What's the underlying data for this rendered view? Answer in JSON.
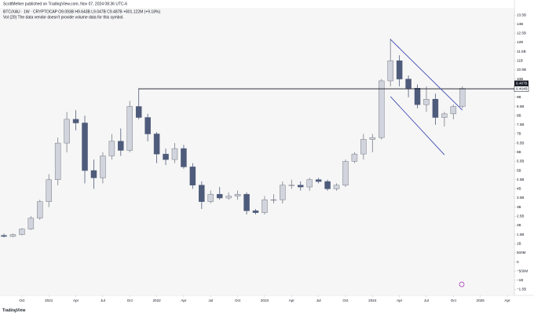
{
  "chart_data": {
    "type": "candlestick",
    "attribution": "ScottMelker published on TradingView.com, Nov 07, 2024 08:36 UTC-6",
    "title": "BTC/XAU · 1W · CRYPTOCAP  O9.093B H9.643B L9.047B C9.487B +801.122M (+9.18%)",
    "subtitle": "Vol (20)  The data vendor doesn't provide volume data for this symbol.",
    "footer_logo": "TradingView",
    "up_color": "#d1d4dc",
    "down_color": "#4e5b7a",
    "x": [
      "2020-08",
      "2020-09",
      "2020-10",
      "2020-11",
      "2020-12",
      "2021-01",
      "2021-02",
      "2021-03",
      "2021-04",
      "2021-05",
      "2021-06",
      "2021-07",
      "2021-08",
      "2021-09",
      "2021-10",
      "2021-11",
      "2021-12",
      "2022-01",
      "2022-02",
      "2022-03",
      "2022-04",
      "2022-05",
      "2022-06",
      "2022-07",
      "2022-08",
      "2022-09",
      "2022-10",
      "2022-11",
      "2022-12",
      "2023-01",
      "2023-02",
      "2023-03",
      "2023-04",
      "2023-05",
      "2023-06",
      "2023-07",
      "2023-08",
      "2023-09",
      "2023-10",
      "2023-11",
      "2023-12",
      "2024-01",
      "2024-02",
      "2024-03",
      "2024-04",
      "2024-05",
      "2024-06",
      "2024-07",
      "2024-08",
      "2024-09",
      "2024-10",
      "2024-11"
    ],
    "open": [
      1.45,
      1.4,
      1.5,
      1.8,
      2.4,
      3.3,
      4.5,
      6.5,
      7.8,
      7.6,
      5.0,
      4.6,
      5.8,
      6.6,
      6.1,
      8.5,
      7.9,
      7.0,
      5.9,
      5.6,
      6.2,
      5.2,
      4.2,
      3.3,
      3.7,
      3.5,
      3.6,
      3.7,
      2.8,
      2.7,
      3.4,
      3.4,
      4.2,
      4.2,
      4.1,
      4.5,
      4.4,
      4.0,
      4.2,
      5.5,
      5.9,
      6.7,
      6.8,
      9.9,
      11.0,
      10.0,
      9.5,
      8.6,
      8.9,
      7.9,
      8.1,
      8.5
    ],
    "high": [
      1.55,
      1.55,
      1.85,
      2.5,
      3.4,
      4.8,
      6.8,
      8.2,
      8.3,
      8.0,
      5.6,
      6.0,
      7.0,
      7.3,
      8.8,
      9.5,
      8.1,
      7.1,
      6.2,
      6.5,
      6.4,
      5.4,
      4.4,
      3.9,
      4.1,
      3.8,
      3.9,
      3.8,
      2.9,
      3.6,
      3.7,
      4.4,
      4.5,
      4.4,
      4.6,
      4.6,
      4.5,
      4.3,
      5.6,
      6.0,
      7.0,
      7.0,
      10.0,
      12.2,
      11.3,
      10.2,
      9.7,
      9.6,
      9.2,
      8.2,
      8.6,
      9.6
    ],
    "low": [
      1.35,
      1.35,
      1.45,
      1.75,
      2.3,
      3.0,
      4.2,
      6.0,
      7.2,
      4.3,
      4.0,
      4.3,
      5.6,
      5.8,
      6.0,
      7.8,
      6.6,
      5.4,
      5.3,
      5.4,
      5.1,
      4.0,
      2.9,
      3.2,
      3.4,
      3.4,
      3.4,
      2.6,
      2.6,
      2.6,
      3.2,
      3.2,
      4.0,
      3.9,
      3.9,
      4.3,
      3.9,
      3.9,
      4.1,
      5.4,
      5.6,
      6.0,
      6.7,
      9.6,
      9.6,
      9.0,
      8.4,
      8.2,
      7.5,
      7.4,
      7.8,
      8.4
    ],
    "close": [
      1.4,
      1.5,
      1.8,
      2.4,
      3.3,
      4.5,
      6.5,
      7.8,
      7.6,
      5.0,
      4.6,
      5.8,
      6.6,
      6.1,
      8.5,
      7.9,
      7.0,
      5.9,
      5.6,
      6.2,
      5.2,
      4.2,
      3.3,
      3.7,
      3.5,
      3.6,
      3.7,
      2.8,
      2.7,
      3.4,
      3.4,
      4.2,
      4.2,
      4.1,
      4.5,
      4.4,
      4.0,
      4.2,
      5.5,
      5.9,
      6.7,
      6.8,
      9.9,
      11.0,
      10.0,
      9.5,
      8.6,
      8.9,
      7.9,
      8.1,
      8.5,
      9.487
    ],
    "xlim": [
      "2020-08",
      "2025-04"
    ],
    "xticks": [
      {
        "value": "2020-10",
        "label": "Oct"
      },
      {
        "value": "2021-01",
        "label": "2021"
      },
      {
        "value": "2021-04",
        "label": "Apr"
      },
      {
        "value": "2021-07",
        "label": "Jul"
      },
      {
        "value": "2021-10",
        "label": "Oct"
      },
      {
        "value": "2022-01",
        "label": "2022"
      },
      {
        "value": "2022-04",
        "label": "Apr"
      },
      {
        "value": "2022-07",
        "label": "Jul"
      },
      {
        "value": "2022-10",
        "label": "Oct"
      },
      {
        "value": "2023-01",
        "label": "2023"
      },
      {
        "value": "2023-04",
        "label": "Apr"
      },
      {
        "value": "2023-07",
        "label": "Jul"
      },
      {
        "value": "2023-10",
        "label": "Oct"
      },
      {
        "value": "2024-01",
        "label": "2024"
      },
      {
        "value": "2024-04",
        "label": "Apr"
      },
      {
        "value": "2024-07",
        "label": "Jul"
      },
      {
        "value": "2024-10",
        "label": "Oct"
      },
      {
        "value": "2025-01",
        "label": "2025"
      },
      {
        "value": "2025-04",
        "label": "Apr"
      }
    ],
    "ylim": [
      -1.78,
      13.89
    ],
    "yticks": [
      {
        "value": 13.5,
        "label": "13.5B"
      },
      {
        "value": 13,
        "label": "13B"
      },
      {
        "value": 12.5,
        "label": "12.5B"
      },
      {
        "value": 12,
        "label": "12B"
      },
      {
        "value": 11.5,
        "label": "11.5B"
      },
      {
        "value": 11,
        "label": "11B"
      },
      {
        "value": 10.5,
        "label": "10.5B"
      },
      {
        "value": 10,
        "label": "10B"
      },
      {
        "value": 9,
        "label": "9B"
      },
      {
        "value": 8.5,
        "label": "8.5B"
      },
      {
        "value": 8,
        "label": "8B"
      },
      {
        "value": 7.5,
        "label": "7.5B"
      },
      {
        "value": 7,
        "label": "7B"
      },
      {
        "value": 6.5,
        "label": "6.5B"
      },
      {
        "value": 6,
        "label": "6B"
      },
      {
        "value": 5.5,
        "label": "5.5B"
      },
      {
        "value": 5,
        "label": "5B"
      },
      {
        "value": 4.5,
        "label": "4.5B"
      },
      {
        "value": 4,
        "label": "4B"
      },
      {
        "value": 3.5,
        "label": "3.5B"
      },
      {
        "value": 3,
        "label": "3B"
      },
      {
        "value": 2.5,
        "label": "2.5B"
      },
      {
        "value": 2,
        "label": "2B"
      },
      {
        "value": 1.5,
        "label": "1.5B"
      },
      {
        "value": 1,
        "label": "1B"
      },
      {
        "value": 0.5,
        "label": "500M"
      },
      0,
      {
        "value": -0.5,
        "label": "−500M"
      },
      {
        "value": -1,
        "label": "−1B"
      },
      {
        "value": -1.5,
        "label": "−1.5B"
      }
    ],
    "grid": false,
    "hline": {
      "value": 9.464,
      "label": "9.464B",
      "x_start": "2021-11",
      "color": "#131722"
    },
    "last_price": {
      "value": 9.487,
      "label": "9.487B"
    },
    "channel": {
      "color": "#3f4bb5",
      "lines": [
        {
          "x": [
            "2024-03",
            "2024-11"
          ],
          "values": [
            12.17,
            8.3
          ]
        },
        {
          "x": [
            "2024-03",
            "2024-09"
          ],
          "values": [
            9.04,
            5.86
          ]
        }
      ]
    }
  }
}
